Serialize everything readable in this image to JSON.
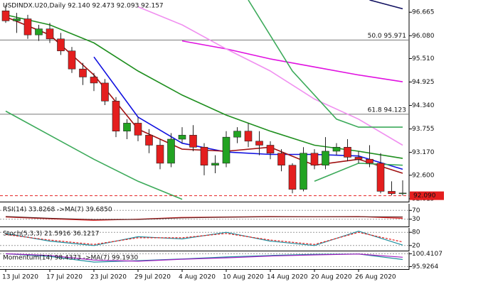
{
  "chart_data": [
    {
      "type": "candlestick",
      "title": "USDINDX.U20,Daily  92.140 92.473 92.093 92.157",
      "open": [
        96.7,
        96.45,
        96.5,
        96.1,
        96.25,
        96.0,
        95.7,
        95.25,
        95.05,
        94.9,
        94.45,
        93.7,
        93.9,
        93.6,
        93.35,
        92.9,
        93.5,
        93.6,
        93.3,
        92.85,
        92.9,
        93.55,
        93.7,
        93.45,
        93.35,
        93.15,
        92.85,
        92.25,
        93.15,
        92.85,
        93.2,
        93.3,
        93.05,
        93.0,
        92.9,
        92.2,
        92.14
      ],
      "high": [
        96.85,
        96.65,
        96.6,
        96.35,
        96.4,
        96.15,
        95.8,
        95.4,
        95.15,
        95.0,
        94.55,
        94.0,
        94.05,
        93.75,
        93.5,
        93.65,
        93.8,
        93.85,
        93.4,
        93.1,
        93.7,
        93.8,
        93.9,
        93.7,
        93.45,
        93.25,
        92.9,
        93.3,
        93.25,
        93.55,
        93.4,
        93.5,
        93.2,
        93.35,
        93.15,
        92.45,
        92.473
      ],
      "low": [
        96.4,
        96.15,
        96.0,
        95.95,
        95.9,
        95.6,
        95.15,
        94.85,
        94.7,
        94.35,
        93.55,
        93.5,
        93.45,
        93.15,
        92.75,
        92.8,
        93.4,
        93.2,
        92.6,
        92.65,
        92.8,
        93.4,
        93.3,
        93.1,
        93.0,
        92.7,
        92.15,
        92.2,
        92.75,
        92.75,
        93.1,
        92.95,
        92.9,
        92.8,
        92.15,
        92.1,
        92.093
      ],
      "close": [
        96.45,
        96.5,
        96.1,
        96.25,
        96.0,
        95.7,
        95.25,
        95.05,
        94.9,
        94.45,
        93.7,
        93.9,
        93.6,
        93.35,
        92.9,
        93.5,
        93.6,
        93.3,
        92.85,
        92.9,
        93.55,
        93.7,
        93.45,
        93.35,
        93.15,
        92.85,
        92.25,
        93.15,
        92.85,
        93.2,
        93.3,
        93.05,
        93.0,
        92.9,
        92.2,
        92.14,
        92.157
      ],
      "up_color": "#22a322",
      "down_color": "#e41e1e",
      "ylim": [
        91.96,
        96.97
      ],
      "yticks": [
        96.665,
        {
          "value": 96.08,
          "label": "96.080"
        },
        {
          "value": 95.51,
          "label": "95.510"
        },
        94.925,
        {
          "value": 94.34,
          "label": "94.340"
        },
        93.755,
        {
          "value": 93.17,
          "label": "93.170"
        },
        {
          "value": 92.6,
          "label": "92.600"
        },
        92.015
      ],
      "xticks": [
        {
          "value": 0,
          "label": "13 Jul 2020"
        },
        {
          "value": 4,
          "label": "17 Jul 2020"
        },
        {
          "value": 8,
          "label": "23 Jul 2020"
        },
        {
          "value": 12,
          "label": "29 Jul 2020"
        },
        {
          "value": 16,
          "label": "4 Aug 2020"
        },
        {
          "value": 20,
          "label": "10 Aug 2020"
        },
        {
          "value": 24,
          "label": "14 Aug 2020"
        },
        {
          "value": 28,
          "label": "20 Aug 2020"
        },
        {
          "value": 32,
          "label": "26 Aug 2020"
        }
      ],
      "levels": [
        {
          "value": 95.971,
          "label": "50.0 95.971"
        },
        {
          "value": 94.123,
          "label": "61.8 94.123"
        }
      ],
      "last_price": {
        "value": 92.09,
        "label": "92.090"
      },
      "series": [
        {
          "color": "#1010e0",
          "x": [
            0,
            4,
            8,
            12,
            16,
            20,
            24,
            28,
            32,
            36
          ],
          "values": [
            null,
            null,
            95.55,
            94.05,
            93.4,
            93.18,
            93.12,
            93.12,
            93.08,
            92.75
          ]
        },
        {
          "color": "#a01010",
          "x": [
            0,
            4,
            8,
            12,
            16,
            20,
            24,
            28,
            32,
            36
          ],
          "values": [
            96.55,
            96.1,
            95.1,
            93.75,
            93.25,
            93.2,
            93.3,
            92.85,
            93.0,
            92.65
          ]
        },
        {
          "color": "#1f8f1f",
          "x": [
            0,
            4,
            8,
            12,
            16,
            20,
            24,
            28,
            32,
            36
          ],
          "values": [
            96.6,
            96.35,
            95.9,
            95.2,
            94.6,
            94.1,
            93.7,
            93.35,
            93.2,
            93.02
          ]
        },
        {
          "color": "#e010e0",
          "x": [
            16,
            20,
            24,
            28,
            32,
            36
          ],
          "values": [
            95.95,
            95.75,
            95.5,
            95.3,
            95.1,
            94.93
          ]
        },
        {
          "color": "#f090f0",
          "x": [
            12,
            16,
            20,
            24,
            28,
            32,
            36
          ],
          "values": [
            96.8,
            96.35,
            95.75,
            95.2,
            94.5,
            94.0,
            93.35
          ]
        },
        {
          "color": "#3caa5a",
          "x": [
            0,
            4,
            8,
            12,
            16,
            20,
            24,
            28,
            32,
            36
          ],
          "values": [
            94.2,
            93.6,
            93.0,
            92.45,
            92.0,
            null,
            null,
            92.45,
            92.9,
            92.85
          ]
        },
        {
          "color": "#3caa5a",
          "x": [
            22,
            26,
            30,
            32,
            36
          ],
          "values": [
            96.97,
            95.2,
            94.0,
            93.8,
            93.8
          ]
        },
        {
          "color": "#101060",
          "x": [
            33,
            36
          ],
          "values": [
            96.97,
            96.75
          ]
        }
      ]
    },
    {
      "type": "line",
      "title": "RSI(14) 33.8268 ->MA(7) 39.6850",
      "ylim": [
        0,
        100
      ],
      "yticks": [
        30,
        70
      ],
      "series": [
        {
          "color": "#e41e1e",
          "x": [
            0,
            4,
            8,
            12,
            16,
            20,
            24,
            28,
            32,
            36
          ],
          "values": [
            40,
            32,
            25,
            30,
            38,
            40,
            42,
            41,
            42,
            34
          ]
        },
        {
          "color": "#602020",
          "x": [
            0,
            4,
            8,
            12,
            16,
            20,
            24,
            28,
            32,
            36
          ],
          "values": [
            42,
            34,
            28,
            29,
            36,
            39,
            41,
            41,
            41,
            40
          ]
        }
      ]
    },
    {
      "type": "line",
      "title": "Stoch(5,3,3) 21.5916 36.1217",
      "ylim": [
        0,
        100
      ],
      "yticks": [
        20,
        80
      ],
      "series": [
        {
          "color": "#2090a0",
          "x": [
            0,
            4,
            8,
            12,
            16,
            20,
            24,
            28,
            32,
            36
          ],
          "values": [
            75,
            40,
            20,
            60,
            50,
            80,
            40,
            20,
            85,
            22
          ]
        },
        {
          "color": "#e41e1e",
          "style": "dashed",
          "x": [
            0,
            4,
            8,
            12,
            16,
            20,
            24,
            28,
            32,
            36
          ],
          "values": [
            70,
            45,
            25,
            55,
            55,
            75,
            45,
            25,
            80,
            36
          ]
        }
      ]
    },
    {
      "type": "line",
      "title": "Momentum(14) 98.4373 ->MA(7) 99.1930",
      "ylim": [
        95.3,
        101
      ],
      "yticks": [
        95.9264,
        100.4107
      ],
      "series": [
        {
          "color": "#2090a0",
          "x": [
            0,
            4,
            8,
            12,
            16,
            20,
            24,
            28,
            32,
            36
          ],
          "values": [
            100.4,
            99.5,
            97.5,
            98.0,
            98.6,
            99.3,
            99.8,
            100.2,
            100.3,
            98.4
          ]
        },
        {
          "color": "#a020c0",
          "x": [
            0,
            4,
            8,
            12,
            16,
            20,
            24,
            28,
            32,
            36
          ],
          "values": [
            100.4,
            99.8,
            98.2,
            97.8,
            98.5,
            99.0,
            99.6,
            100.0,
            100.3,
            99.2
          ]
        }
      ]
    }
  ]
}
